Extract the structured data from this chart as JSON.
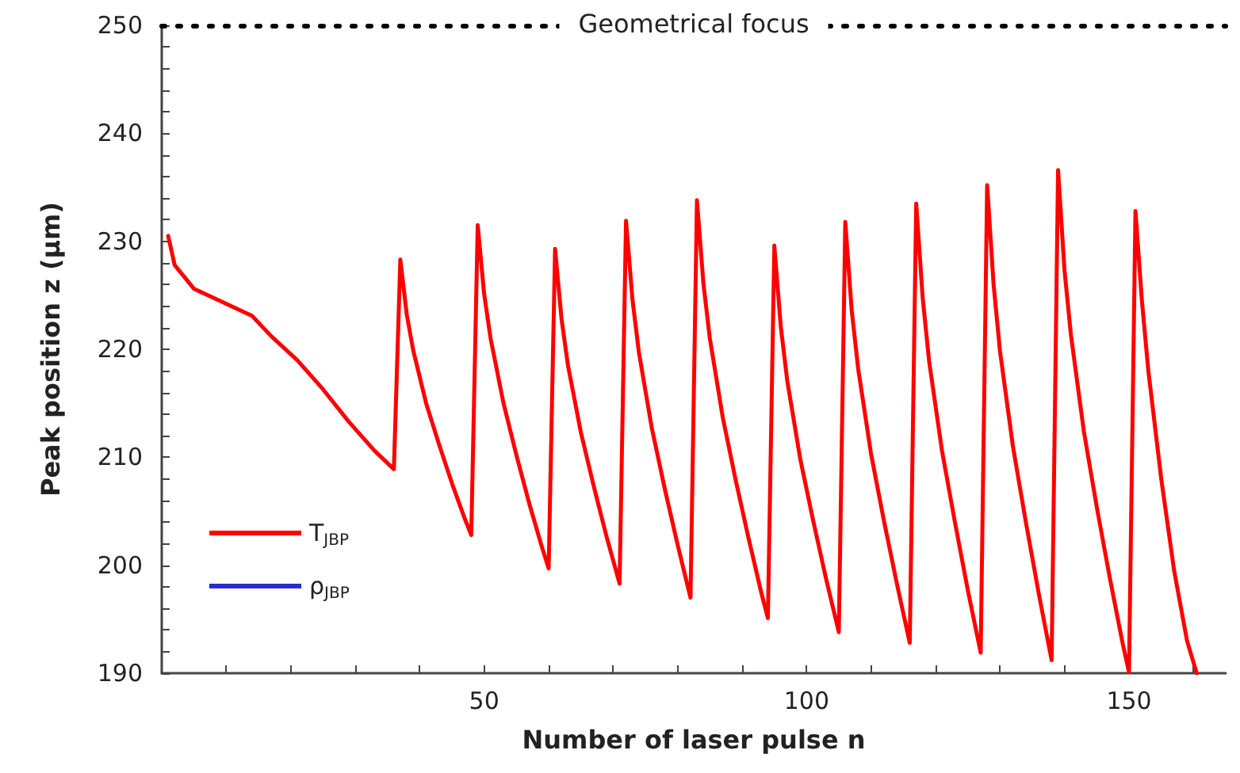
{
  "chart_data": {
    "type": "line",
    "xlabel": "Number of laser pulse n",
    "ylabel": "Peak position z (μm)",
    "xlim": [
      0,
      165
    ],
    "xticks": [
      {
        "value": 10,
        "label": null
      },
      {
        "value": 20,
        "label": null
      },
      {
        "value": 30,
        "label": null
      },
      {
        "value": 40,
        "label": null
      },
      50,
      {
        "value": 60,
        "label": null
      },
      {
        "value": 70,
        "label": null
      },
      {
        "value": 80,
        "label": null
      },
      {
        "value": 90,
        "label": null
      },
      100,
      {
        "value": 110,
        "label": null
      },
      {
        "value": 120,
        "label": null
      },
      {
        "value": 130,
        "label": null
      },
      {
        "value": 140,
        "label": null
      },
      150,
      {
        "value": 160,
        "label": null
      }
    ],
    "ylim": [
      190,
      250
    ],
    "yticks": [
      190,
      {
        "value": 192,
        "label": null
      },
      {
        "value": 194,
        "label": null
      },
      {
        "value": 196,
        "label": null
      },
      {
        "value": 198,
        "label": null
      },
      200,
      {
        "value": 202,
        "label": null
      },
      {
        "value": 204,
        "label": null
      },
      {
        "value": 206,
        "label": null
      },
      {
        "value": 208,
        "label": null
      },
      210,
      {
        "value": 212,
        "label": null
      },
      {
        "value": 214,
        "label": null
      },
      {
        "value": 216,
        "label": null
      },
      {
        "value": 218,
        "label": null
      },
      220,
      {
        "value": 222,
        "label": null
      },
      {
        "value": 224,
        "label": null
      },
      {
        "value": 226,
        "label": null
      },
      {
        "value": 228,
        "label": null
      },
      230,
      {
        "value": 232,
        "label": null
      },
      {
        "value": 234,
        "label": null
      },
      {
        "value": 236,
        "label": null
      },
      {
        "value": 238,
        "label": null
      },
      240,
      {
        "value": 242,
        "label": null
      },
      {
        "value": 244,
        "label": null
      },
      {
        "value": 246,
        "label": null
      },
      {
        "value": 248,
        "label": null
      },
      250
    ],
    "grid": false,
    "legend": "bottom left",
    "marker": "none",
    "line_style": "solid",
    "ref_lines": [
      {
        "axis": "y",
        "value": 250,
        "label": "Geometrical focus",
        "line_style": "dotted",
        "color": "#000000"
      }
    ],
    "series": [
      {
        "name": "T$_{JBP}$",
        "color": "#ff0000",
        "x": [
          1,
          2,
          5,
          9,
          14,
          17,
          21,
          25,
          29,
          33,
          36,
          37,
          38,
          39,
          41,
          43,
          45,
          47,
          48,
          49,
          50,
          51,
          53,
          55,
          57,
          59,
          60,
          61,
          62,
          63,
          65,
          67,
          69,
          71,
          72,
          73,
          74,
          76,
          78,
          80,
          82,
          83,
          84,
          85,
          87,
          89,
          91,
          93,
          94,
          95,
          96,
          97,
          99,
          101,
          103,
          105,
          106,
          107,
          108,
          110,
          112,
          114,
          116,
          117,
          118,
          119,
          121,
          123,
          125,
          127,
          128,
          129,
          130,
          132,
          134,
          136,
          138,
          139,
          140,
          141,
          143,
          145,
          147,
          149,
          150,
          151,
          152,
          153,
          155,
          157,
          159,
          160.5
        ],
        "values": [
          230.5,
          227.8,
          225.6,
          224.5,
          223.1,
          221.2,
          219,
          216.3,
          213.3,
          210.6,
          208.9,
          228.3,
          223.2,
          219.9,
          215.0,
          211.2,
          207.6,
          204.3,
          202.8,
          231.5,
          225.1,
          221.0,
          215.0,
          210.2,
          205.7,
          201.6,
          199.7,
          229.3,
          222.8,
          218.5,
          212.3,
          207.3,
          202.6,
          198.3,
          231.9,
          224.6,
          219.7,
          212.7,
          207.1,
          201.9,
          197.0,
          233.8,
          226.1,
          221.0,
          213.7,
          207.9,
          202.5,
          197.4,
          195.1,
          229.6,
          222.1,
          217.1,
          209.9,
          204.2,
          198.8,
          193.8,
          231.8,
          223.6,
          218.2,
          210.3,
          204.1,
          198.3,
          192.8,
          233.5,
          224.8,
          218.9,
          210.6,
          204.0,
          197.7,
          191.9,
          235.2,
          226.0,
          219.8,
          211.0,
          204.0,
          197.4,
          191.2,
          236.6,
          227.3,
          221.3,
          212.4,
          205.4,
          198.9,
          192.8,
          190.1,
          232.8,
          224.5,
          218.0,
          208.0,
          199.5,
          193.0,
          190
        ]
      },
      {
        "name": "ρ$_{JBP}$",
        "color": "#2b2bd0",
        "values": [
          null
        ]
      }
    ]
  }
}
